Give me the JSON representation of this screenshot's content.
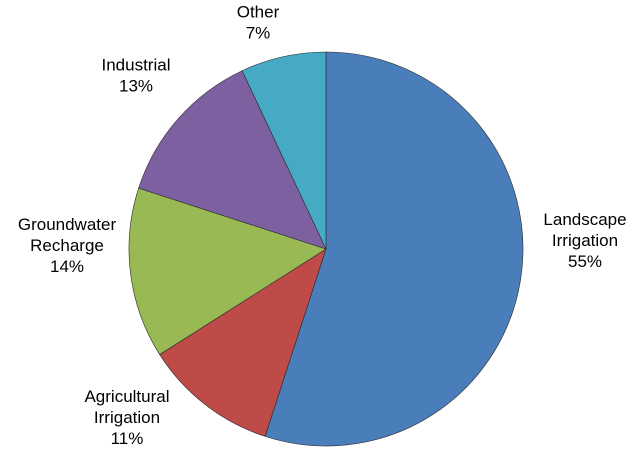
{
  "chart_data": {
    "type": "pie",
    "slices": [
      {
        "label_lines": [
          "Landscape",
          "Irrigation"
        ],
        "value_label": "55%",
        "value": 55,
        "color": "#4a7ebb"
      },
      {
        "label_lines": [
          "Agricultural",
          "Irrigation"
        ],
        "value_label": "11%",
        "value": 11,
        "color": "#be4b48"
      },
      {
        "label_lines": [
          "Groundwater",
          "Recharge"
        ],
        "value_label": "14%",
        "value": 14,
        "color": "#98b954"
      },
      {
        "label_lines": [
          "Industrial"
        ],
        "value_label": "13%",
        "value": 13,
        "color": "#7d60a0"
      },
      {
        "label_lines": [
          "Other"
        ],
        "value_label": "7%",
        "value": 7,
        "color": "#46aac5"
      }
    ],
    "start": "12 o'clock",
    "direction": "clockwise",
    "legend": "none"
  }
}
